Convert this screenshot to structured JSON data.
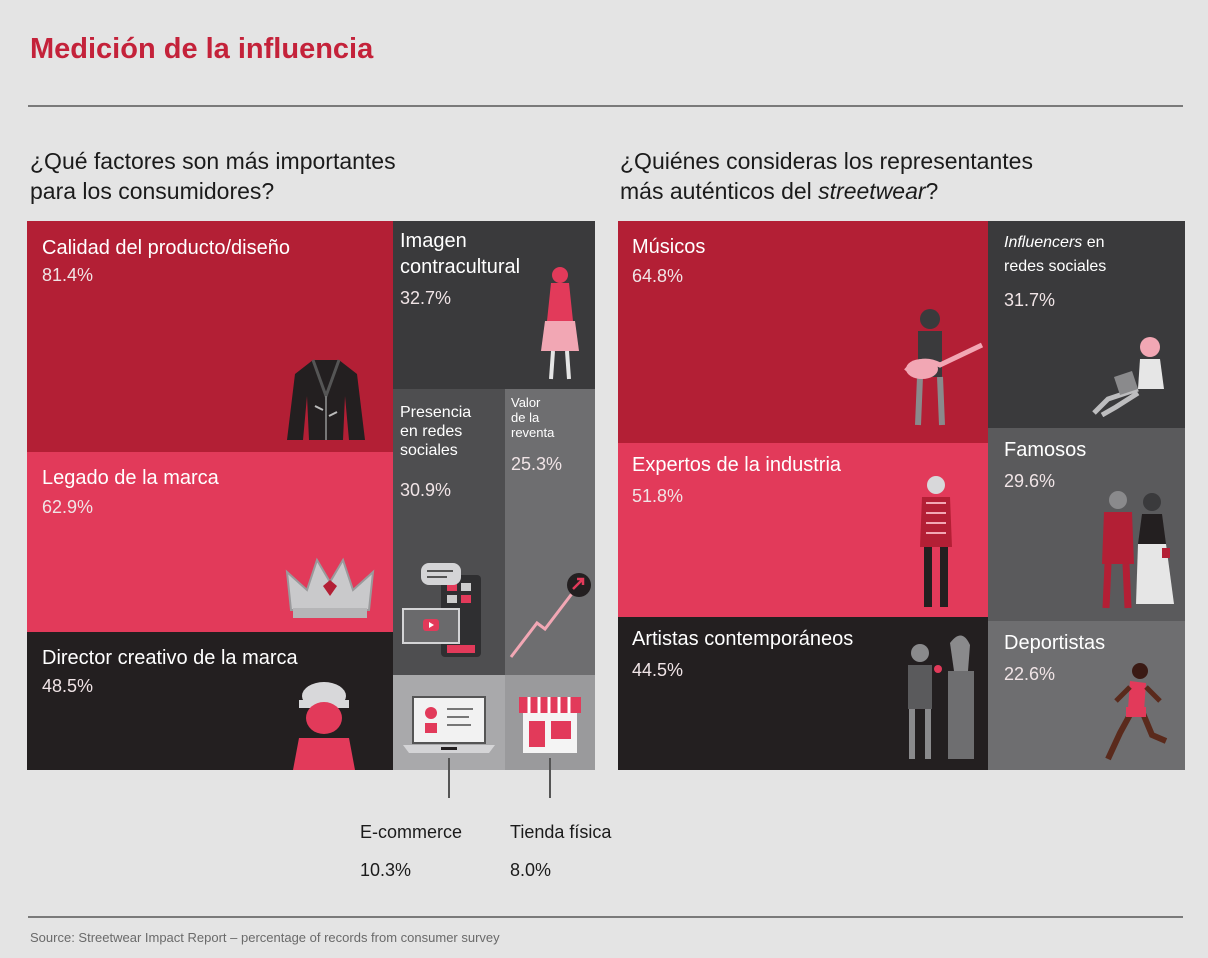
{
  "header": {
    "title": "Medición de la influencia",
    "left_question_line1": "¿Qué factores son más importantes",
    "left_question_line2": "para los consumidores?",
    "right_question_line1": "¿Quiénes consideras los representantes",
    "right_question_line2_pre": "más auténticos del ",
    "right_question_line2_em": "streetwear",
    "right_question_line2_post": "?"
  },
  "colors": {
    "red": "#b31f35",
    "pink": "#e23a5a",
    "black": "#231f20",
    "darkgray": "#3a3a3c",
    "midgray": "#5a5a5c",
    "gray": "#6e6e70",
    "lightgray": "#a9a9ab"
  },
  "chart_data": [
    {
      "type": "treemap",
      "title": "¿Qué factores son más importantes para los consumidores?",
      "unit": "%",
      "items": [
        {
          "label": "Calidad del producto/diseño",
          "value": 81.4,
          "value_text": "81.4%",
          "icon": "jacket-icon"
        },
        {
          "label": "Legado de la marca",
          "value": 62.9,
          "value_text": "62.9%",
          "icon": "crown-icon"
        },
        {
          "label": "Director creativo de la marca",
          "value": 48.5,
          "value_text": "48.5%",
          "icon": "cap-person-icon"
        },
        {
          "label_line1": "Imagen",
          "label_line2": "contracultural",
          "value": 32.7,
          "value_text": "32.7%",
          "icon": "woman-walking-icon"
        },
        {
          "label_line1": "Presencia",
          "label_line2": "en redes",
          "label_line3": "sociales",
          "value": 30.9,
          "value_text": "30.9%",
          "icon": "social-media-icon"
        },
        {
          "label_line1": "Valor",
          "label_line2": "de la",
          "label_line3": "reventa",
          "value": 25.3,
          "value_text": "25.3%",
          "icon": "rising-arrow-icon"
        },
        {
          "label": "E-commerce",
          "value": 10.3,
          "value_text": "10.3%",
          "icon": "laptop-icon"
        },
        {
          "label": "Tienda física",
          "value": 8.0,
          "value_text": "8.0%",
          "icon": "store-icon"
        }
      ]
    },
    {
      "type": "treemap",
      "title": "¿Quiénes consideras los representantes más auténticos del streetwear?",
      "unit": "%",
      "items": [
        {
          "label": "Músicos",
          "value": 64.8,
          "value_text": "64.8%",
          "icon": "guitarist-icon"
        },
        {
          "label": "Expertos de la industria",
          "value": 51.8,
          "value_text": "51.8%",
          "icon": "standing-man-icon"
        },
        {
          "label": "Artistas contemporáneos",
          "value": 44.5,
          "value_text": "44.5%",
          "icon": "artist-statue-icon"
        },
        {
          "label_em": "Influencers",
          "label_rest": " en",
          "label_line2": "redes sociales",
          "value": 31.7,
          "value_text": "31.7%",
          "icon": "woman-laptop-icon"
        },
        {
          "label": "Famosos",
          "value": 29.6,
          "value_text": "29.6%",
          "icon": "celebrity-couple-icon"
        },
        {
          "label": "Deportistas",
          "value": 22.6,
          "value_text": "22.6%",
          "icon": "runner-icon"
        }
      ]
    }
  ],
  "footer": {
    "source": "Source: Streetwear Impact Report – percentage of records from consumer survey"
  }
}
